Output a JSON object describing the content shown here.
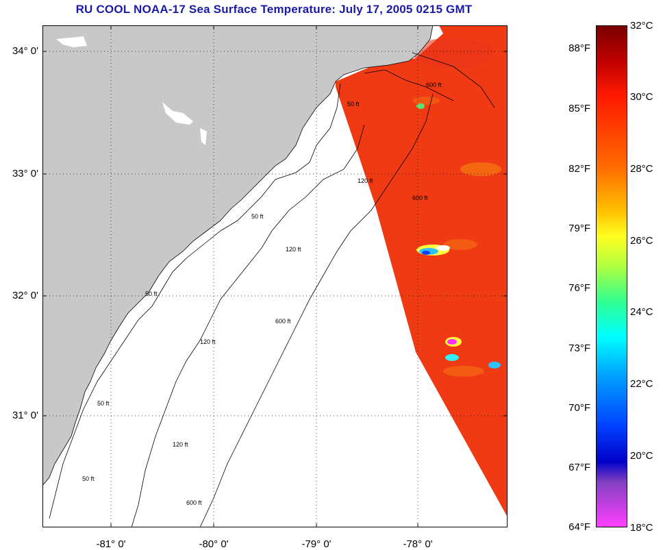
{
  "title": "RU COOL  NOAA-17  Sea Surface Temperature:  July 17, 2005 0215 GMT",
  "lat_labels": [
    "34° 0'",
    "33° 0'",
    "32° 0'",
    "31° 0'"
  ],
  "lon_labels": [
    "-81° 0'",
    "-80° 0'",
    "-79° 0'",
    "-78° 0'"
  ],
  "contour_labels": [
    "50 ft",
    "120 ft",
    "600 ft",
    "50 ft",
    "120 ft",
    "600 ft",
    "50 ft",
    "120 ft",
    "600 ft",
    "50 ft",
    "120 ft",
    "600 ft",
    "50 ft"
  ],
  "colorbar": {
    "fahrenheit": [
      "88°F",
      "85°F",
      "82°F",
      "79°F",
      "76°F",
      "73°F",
      "70°F",
      "67°F",
      "64°F"
    ],
    "celsius": [
      "32°C",
      "30°C",
      "28°C",
      "26°C",
      "24°C",
      "22°C",
      "20°C",
      "18°C"
    ]
  },
  "colors": {
    "land": "#c8c8c8",
    "sst_warm": "#f03a14",
    "title": "#1a1aa6"
  }
}
